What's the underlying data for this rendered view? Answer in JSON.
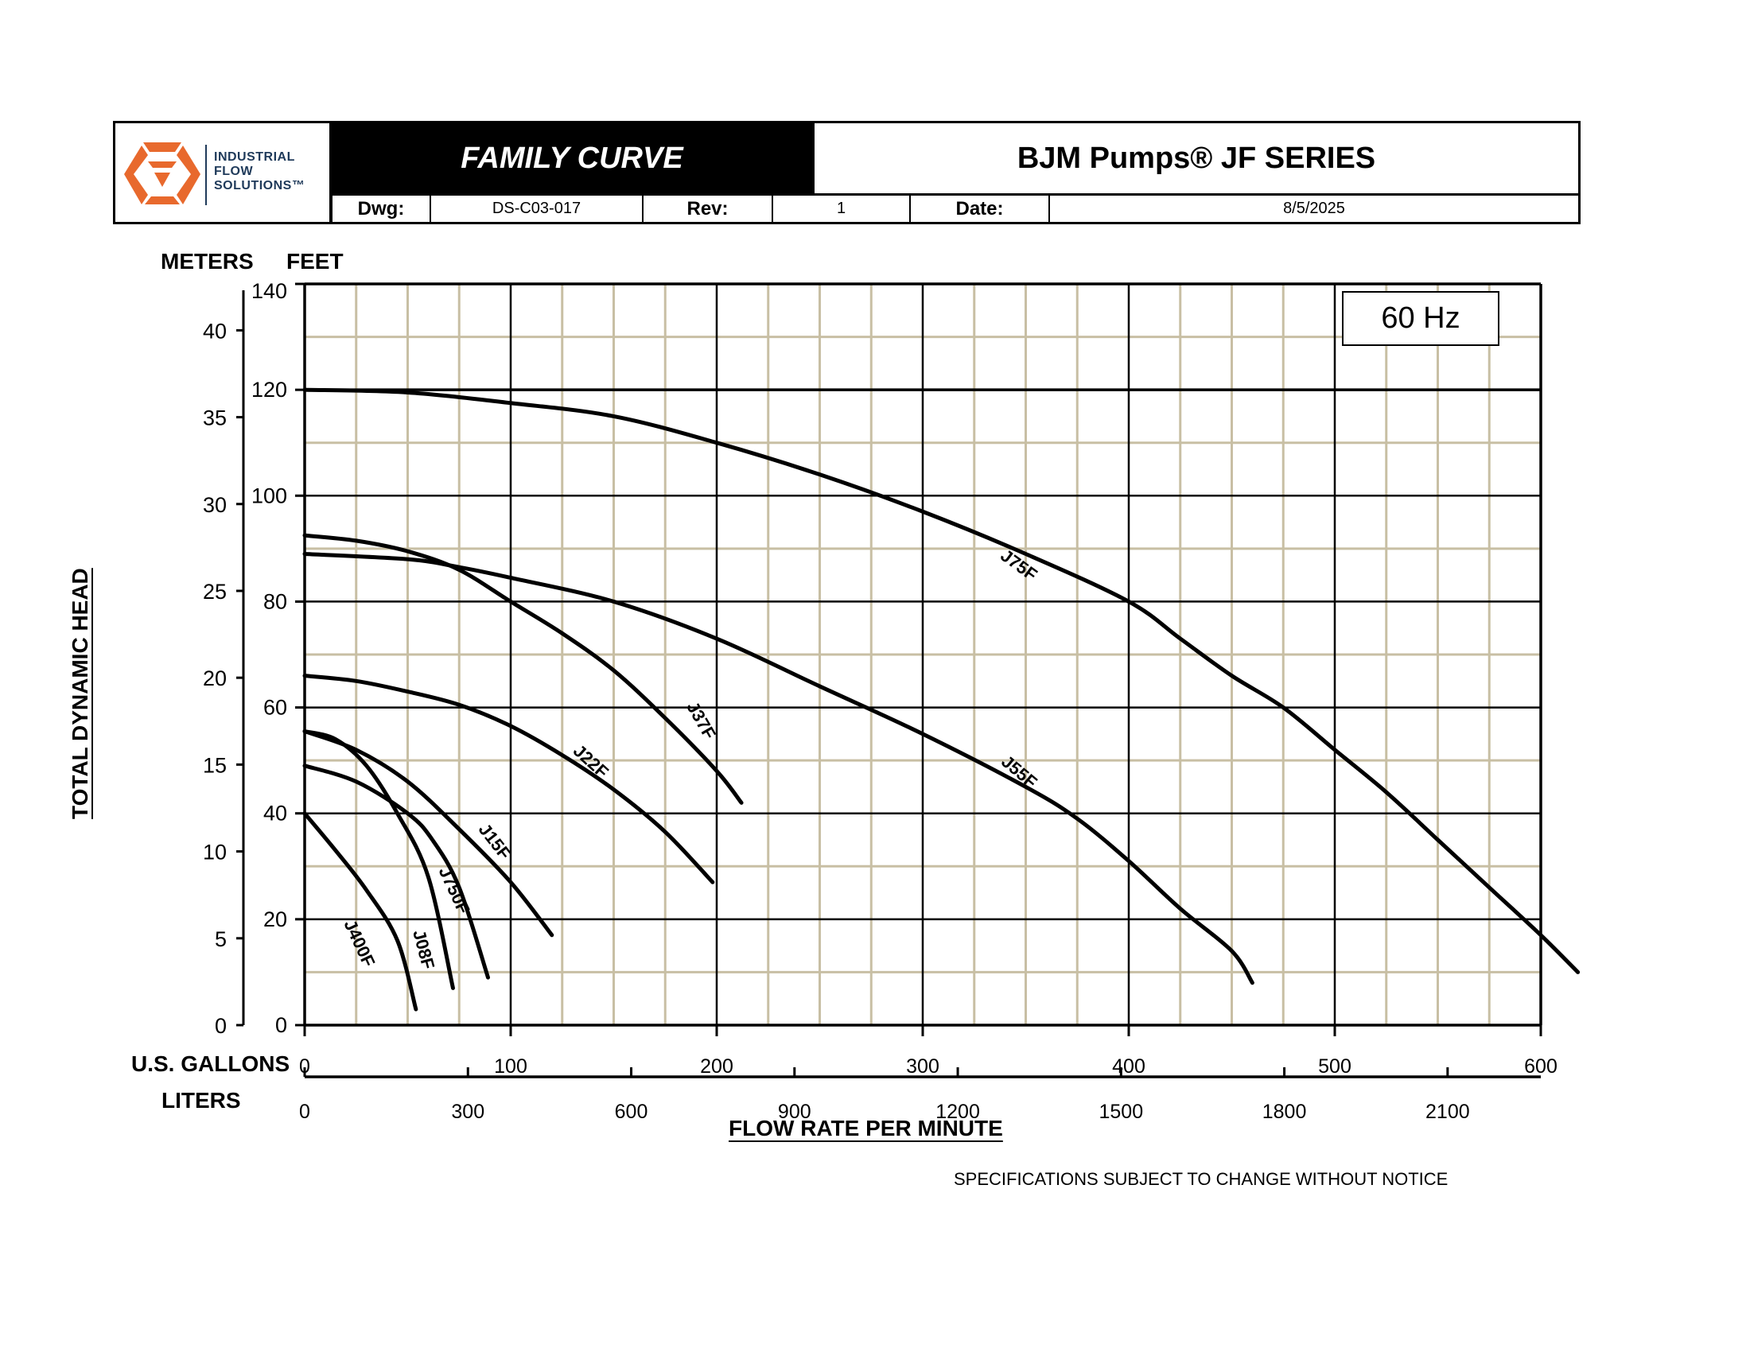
{
  "header": {
    "logo": {
      "line1": "INDUSTRIAL",
      "line2": "FLOW",
      "line3": "SOLUTIONS™",
      "mark_color": "#E8692D",
      "text_color": "#1F3A5A"
    },
    "doc_title": "FAMILY CURVE",
    "series_title": "BJM Pumps® JF SERIES",
    "dwg_label": "Dwg:",
    "dwg_value": "DS-C03-017",
    "rev_label": "Rev:",
    "rev_value": "1",
    "date_label": "Date:",
    "date_value": "8/5/2025"
  },
  "axes": {
    "meters_caption": "METERS",
    "feet_caption": "FEET",
    "gallons_caption": "U.S. GALLONS",
    "liters_caption": "LITERS",
    "y_title": "TOTAL DYNAMIC HEAD",
    "x_title": "FLOW RATE PER MINUTE",
    "feet_ticks": [
      "0",
      "20",
      "40",
      "60",
      "80",
      "100",
      "120",
      "140"
    ],
    "meter_ticks": [
      "0",
      "5",
      "10",
      "15",
      "20",
      "25",
      "30",
      "35",
      "40"
    ],
    "gallon_ticks": [
      "0",
      "100",
      "200",
      "300",
      "400",
      "500",
      "600"
    ],
    "liter_ticks": [
      "0",
      "300",
      "600",
      "900",
      "1200",
      "1500",
      "1800",
      "2100"
    ]
  },
  "frequency_label": "60 Hz",
  "notice": "SPECIFICATIONS SUBJECT TO CHANGE WITHOUT NOTICE",
  "colors": {
    "grid_major": "#000000",
    "grid_minor": "#C8BFA4",
    "curve": "#000000"
  },
  "chart_data": {
    "type": "line",
    "title": "FAMILY CURVE — BJM Pumps® JF SERIES (60 Hz)",
    "xlabel": "FLOW RATE PER MINUTE (U.S. GALLONS / LITERS)",
    "ylabel": "TOTAL DYNAMIC HEAD (FEET / METERS)",
    "xlim": [
      0,
      600
    ],
    "ylim": [
      0,
      140
    ],
    "x_unit": "U.S. gallons per minute",
    "y_unit": "feet",
    "secondary_x": {
      "unit": "liters per minute",
      "ticks": [
        0,
        300,
        600,
        900,
        1200,
        1500,
        1800,
        2100
      ]
    },
    "secondary_y": {
      "unit": "meters",
      "ticks": [
        0,
        5,
        10,
        15,
        20,
        25,
        30,
        35,
        40
      ]
    },
    "grid": {
      "major_x": 100,
      "minor_x": 25,
      "major_y": 20,
      "minor_y": 10
    },
    "legend": "inline curve labels",
    "series": [
      {
        "name": "J75F",
        "label_at": [
          345,
          86,
          -36
        ],
        "points": [
          [
            0,
            120
          ],
          [
            50,
            119.5
          ],
          [
            100,
            117.5
          ],
          [
            150,
            115
          ],
          [
            200,
            110
          ],
          [
            250,
            104
          ],
          [
            300,
            97
          ],
          [
            350,
            89
          ],
          [
            400,
            80
          ],
          [
            425,
            73
          ],
          [
            450,
            66
          ],
          [
            475,
            60
          ],
          [
            500,
            52
          ],
          [
            525,
            44
          ],
          [
            550,
            35
          ],
          [
            575,
            26
          ],
          [
            600,
            17
          ],
          [
            618,
            10
          ]
        ]
      },
      {
        "name": "J55F",
        "label_at": [
          345,
          47,
          -40
        ],
        "points": [
          [
            0,
            89
          ],
          [
            50,
            88
          ],
          [
            75,
            86.5
          ],
          [
            100,
            84.5
          ],
          [
            150,
            80
          ],
          [
            200,
            73
          ],
          [
            250,
            64
          ],
          [
            300,
            55
          ],
          [
            350,
            45
          ],
          [
            375,
            39
          ],
          [
            400,
            31
          ],
          [
            425,
            22
          ],
          [
            450,
            14
          ],
          [
            460,
            8
          ]
        ]
      },
      {
        "name": "J37F",
        "label_at": [
          190,
          57,
          -60
        ],
        "points": [
          [
            0,
            92.5
          ],
          [
            25,
            91.5
          ],
          [
            50,
            89.5
          ],
          [
            75,
            86
          ],
          [
            100,
            80
          ],
          [
            125,
            74
          ],
          [
            150,
            67
          ],
          [
            175,
            58
          ],
          [
            200,
            48
          ],
          [
            212,
            42
          ]
        ]
      },
      {
        "name": "J22F",
        "label_at": [
          137,
          49,
          -42
        ],
        "points": [
          [
            0,
            66
          ],
          [
            25,
            65
          ],
          [
            50,
            63
          ],
          [
            75,
            60.5
          ],
          [
            100,
            56.5
          ],
          [
            125,
            51
          ],
          [
            150,
            44.5
          ],
          [
            175,
            36.5
          ],
          [
            198,
            27
          ]
        ]
      },
      {
        "name": "J15F",
        "label_at": [
          90,
          34,
          -52
        ],
        "points": [
          [
            0,
            55.5
          ],
          [
            25,
            52
          ],
          [
            50,
            46
          ],
          [
            75,
            37
          ],
          [
            100,
            27
          ],
          [
            120,
            17
          ]
        ]
      },
      {
        "name": "J750F",
        "label_at": [
          70,
          25,
          -65
        ],
        "points": [
          [
            0,
            49
          ],
          [
            25,
            46
          ],
          [
            50,
            40
          ],
          [
            62,
            35
          ],
          [
            75,
            26
          ],
          [
            89,
            9
          ]
        ]
      },
      {
        "name": "J08F",
        "label_at": [
          55,
          14,
          -75
        ],
        "points": [
          [
            0,
            55.5
          ],
          [
            15,
            54
          ],
          [
            30,
            49
          ],
          [
            45,
            40
          ],
          [
            60,
            28
          ],
          [
            72,
            7
          ]
        ]
      },
      {
        "name": "J400F",
        "label_at": [
          24,
          15,
          -65
        ],
        "points": [
          [
            0,
            40
          ],
          [
            15,
            33
          ],
          [
            30,
            25.5
          ],
          [
            45,
            16
          ],
          [
            54,
            3
          ]
        ]
      }
    ]
  }
}
